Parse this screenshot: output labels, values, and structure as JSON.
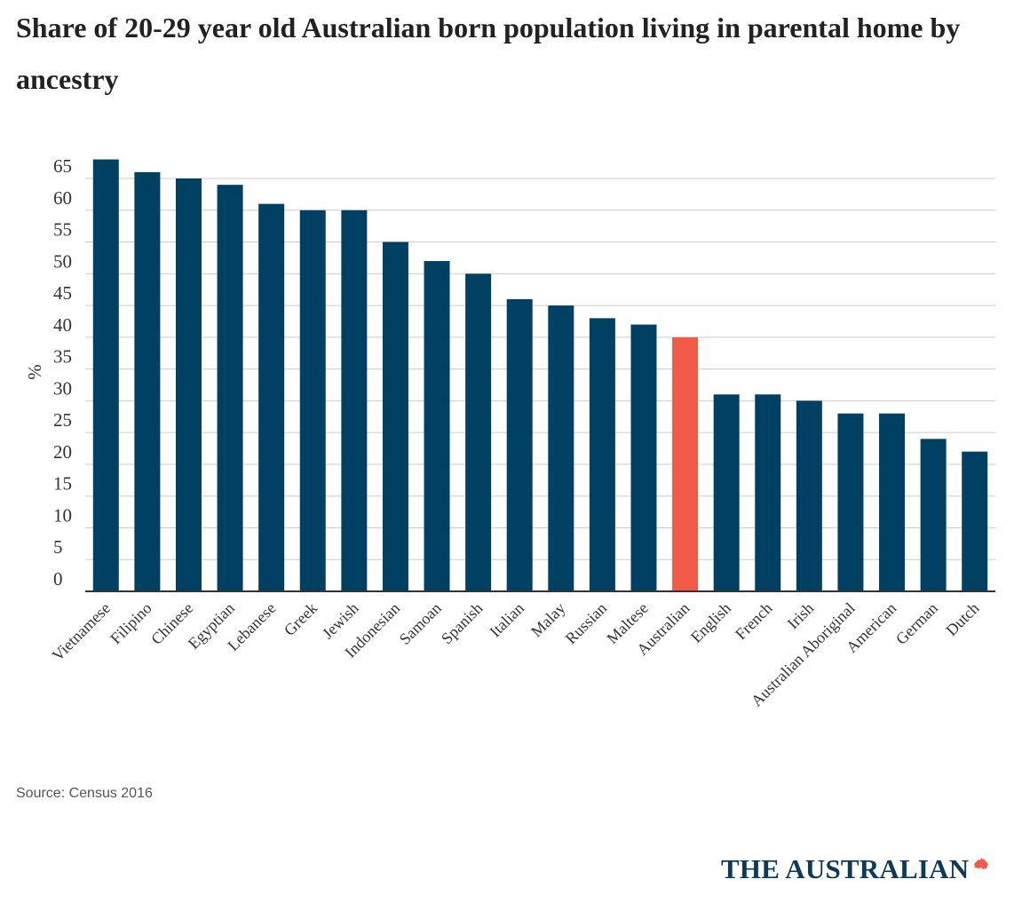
{
  "title": "Share of 20-29 year old Australian born population living in parental home by ancestry",
  "source": "Source: Census 2016",
  "logo": {
    "text": "THE AUSTRALIAN",
    "icon": "australia-map-icon"
  },
  "colors": {
    "bar": "#004163",
    "highlight": "#f15a49",
    "grid": "#cccccc",
    "axis": "#333333",
    "text": "#333333"
  },
  "chart_data": {
    "type": "bar",
    "title": "Share of 20-29 year old Australian born population living in parental home by ancestry",
    "xlabel": "",
    "ylabel": "%",
    "ylim": [
      0,
      65
    ],
    "yticks": [
      0,
      5,
      10,
      15,
      20,
      25,
      30,
      35,
      40,
      45,
      50,
      55,
      60,
      65
    ],
    "grid": true,
    "categories": [
      "Vietnamese",
      "Filipino",
      "Chinese",
      "Egyptian",
      "Lebanese",
      "Greek",
      "Jewish",
      "Indonesian",
      "Samoan",
      "Spanish",
      "Italian",
      "Malay",
      "Russian",
      "Maltese",
      "Australian",
      "English",
      "French",
      "Irish",
      "Australian Aboriginal",
      "American",
      "German",
      "Dutch"
    ],
    "values": [
      68,
      66,
      65,
      64,
      61,
      60,
      60,
      55,
      52,
      50,
      46,
      45,
      43,
      42,
      40,
      31,
      31,
      30,
      28,
      28,
      24,
      22
    ],
    "highlight": "Australian"
  }
}
